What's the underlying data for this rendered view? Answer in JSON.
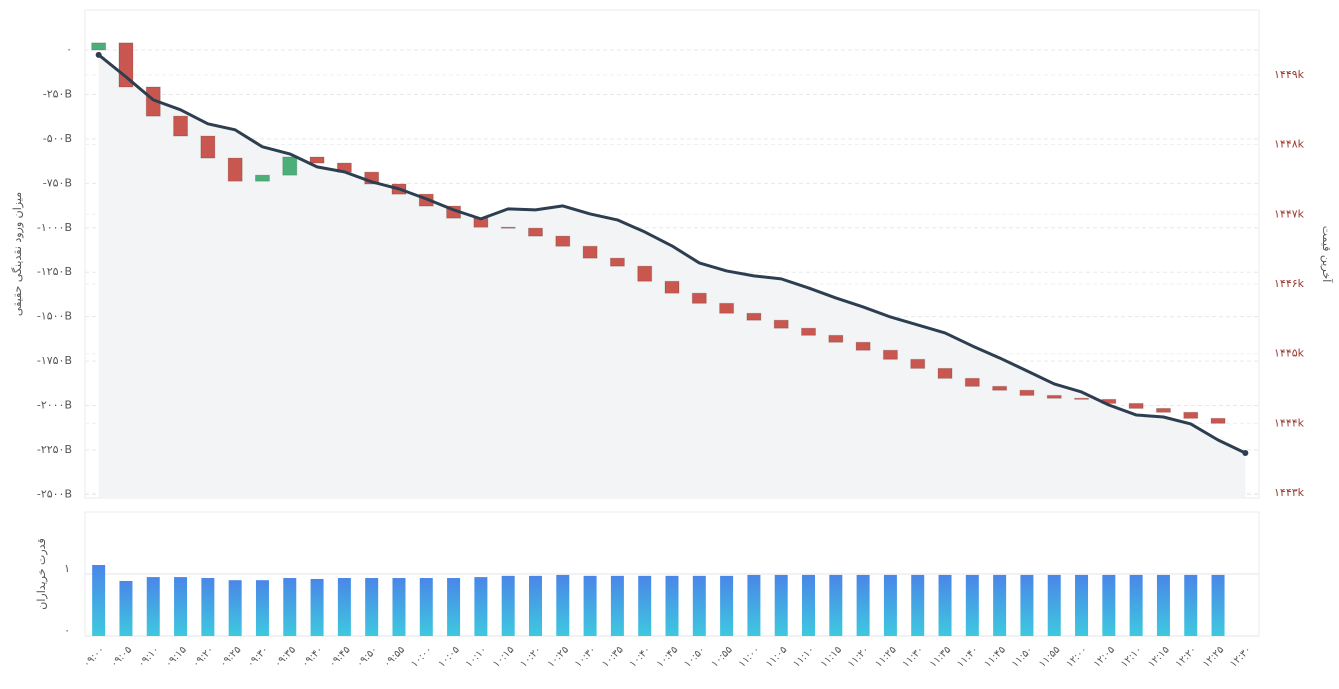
{
  "chart_data": [
    {
      "type": "waterfall",
      "ylabel": "میزان ورود نقدینگی حقیقی",
      "y2label": "آخرین قیمت",
      "ylim": [
        -2520,
        225
      ],
      "yticks": [
        {
          "value": 0,
          "label": "۰"
        },
        {
          "value": -250,
          "label": "-۲۵۰B"
        },
        {
          "value": -500,
          "label": "-۵۰۰B"
        },
        {
          "value": -750,
          "label": "-۷۵۰B"
        },
        {
          "value": -1000,
          "label": "-۱۰۰۰B"
        },
        {
          "value": -1250,
          "label": "-۱۲۵۰B"
        },
        {
          "value": -1500,
          "label": "-۱۵۰۰B"
        },
        {
          "value": -1750,
          "label": "-۱۷۵۰B"
        },
        {
          "value": -2000,
          "label": "-۲۰۰۰B"
        },
        {
          "value": -2250,
          "label": "-۲۲۵۰B"
        },
        {
          "value": -2500,
          "label": "-۲۵۰۰B"
        }
      ],
      "y2lim": [
        1442930,
        1449930
      ],
      "y2ticks": [
        {
          "value": 1449000,
          "label": "۱۴۴۹k"
        },
        {
          "value": 1448000,
          "label": "۱۴۴۸k"
        },
        {
          "value": 1447000,
          "label": "۱۴۴۷k"
        },
        {
          "value": 1446000,
          "label": "۱۴۴۶k"
        },
        {
          "value": 1445000,
          "label": "۱۴۴۵k"
        },
        {
          "value": 1444000,
          "label": "۱۴۴۴k"
        },
        {
          "value": 1443000,
          "label": "۱۴۴۳k"
        }
      ],
      "grid": true,
      "series": [
        {
          "type": "waterfall",
          "up_color": "#4caf7a",
          "down_color": "#c9574f",
          "values": [
            40,
            -248,
            -164,
            -112,
            -124,
            -130,
            34,
            102,
            -34,
            -51,
            -67,
            -57,
            -67,
            -68,
            -51,
            -5,
            -45,
            -57,
            -67,
            -45,
            -85,
            -67,
            -57,
            -56,
            -39,
            -45,
            -40,
            -39,
            -45,
            -51,
            -51,
            -56,
            -45,
            -22,
            -29,
            -16,
            -6,
            -23,
            -28,
            -22,
            -34,
            -28,
            null
          ]
        },
        {
          "type": "line",
          "axis": "y2",
          "color": "#2d3e50",
          "area_color": "#f2f4f5",
          "values": [
            1449287,
            1448971,
            1448641,
            1448498,
            1448297,
            1448211,
            1447967,
            1447866,
            1447680,
            1447608,
            1447465,
            1447364,
            1447221,
            1447063,
            1446934,
            1447077,
            1447063,
            1447120,
            1447005,
            1446919,
            1446747,
            1446546,
            1446302,
            1446187,
            1446116,
            1446073,
            1445943,
            1445800,
            1445671,
            1445527,
            1445413,
            1445298,
            1445111,
            1444939,
            1444753,
            1444566,
            1444451,
            1444264,
            1444121,
            1444092,
            1443992,
            1443762,
            1443576
          ]
        }
      ]
    },
    {
      "type": "bar",
      "ylabel": "قدرت خریداران",
      "ylim": [
        0,
        2
      ],
      "yticks": [
        {
          "value": 0,
          "label": "۰"
        },
        {
          "value": 1,
          "label": "۱"
        }
      ],
      "color": "#4a86e8",
      "color_bottom": "#3ec9df",
      "categories": [
        "۰۹:۰۰",
        "۰۹:۰۵",
        "۰۹:۱۰",
        "۰۹:۱۵",
        "۰۹:۲۰",
        "۰۹:۲۵",
        "۰۹:۳۰",
        "۰۹:۳۵",
        "۰۹:۴۰",
        "۰۹:۴۵",
        "۰۹:۵۰",
        "۰۹:۵۵",
        "۱۰:۰۰",
        "۱۰:۰۵",
        "۱۰:۱۰",
        "۱۰:۱۵",
        "۱۰:۲۰",
        "۱۰:۲۵",
        "۱۰:۳۰",
        "۱۰:۳۵",
        "۱۰:۴۰",
        "۱۰:۴۵",
        "۱۰:۵۰",
        "۱۰:۵۵",
        "۱۱:۰۰",
        "۱۱:۰۵",
        "۱۱:۱۰",
        "۱۱:۱۵",
        "۱۱:۲۰",
        "۱۱:۲۵",
        "۱۱:۳۰",
        "۱۱:۳۵",
        "۱۱:۴۰",
        "۱۱:۴۵",
        "۱۱:۵۰",
        "۱۱:۵۵",
        "۱۲:۰۰",
        "۱۲:۰۵",
        "۱۲:۱۰",
        "۱۲:۱۵",
        "۱۲:۲۰",
        "۱۲:۲۵",
        "۱۲:۳۰"
      ],
      "values": [
        1.145,
        0.887,
        0.95,
        0.95,
        0.935,
        0.9,
        0.9,
        0.935,
        0.92,
        0.935,
        0.935,
        0.935,
        0.935,
        0.935,
        0.95,
        0.97,
        0.97,
        0.985,
        0.97,
        0.97,
        0.97,
        0.97,
        0.97,
        0.97,
        0.985,
        0.985,
        0.985,
        0.985,
        0.985,
        0.985,
        0.985,
        0.985,
        0.985,
        0.985,
        0.985,
        0.985,
        0.985,
        0.985,
        0.985,
        0.985,
        0.985,
        0.985,
        null
      ]
    }
  ]
}
